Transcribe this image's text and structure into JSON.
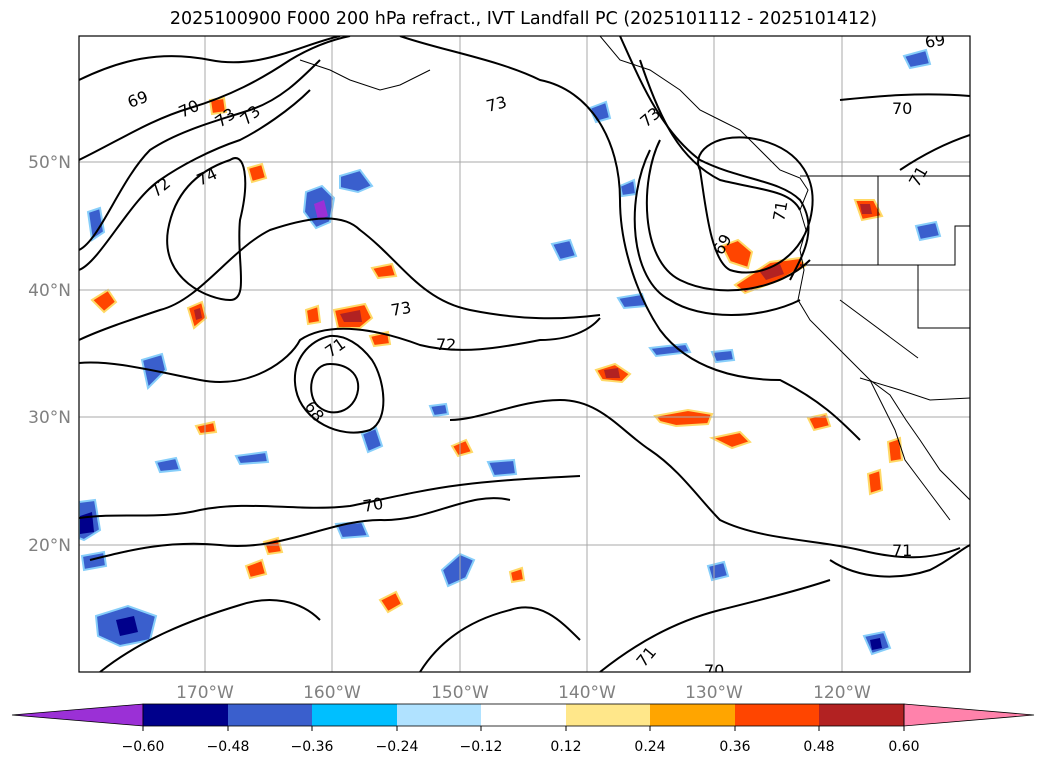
{
  "title": "2025100900 F000 200 hPa refract., IVT Landfall PC (2025101112 - 2025101412)",
  "lat_labels": [
    "50°N",
    "40°N",
    "30°N",
    "20°N"
  ],
  "lon_labels": [
    "170°W",
    "160°W",
    "150°W",
    "140°W",
    "130°W",
    "120°W"
  ],
  "contour_labels": [
    "69",
    "70",
    "73",
    "73",
    "72",
    "74",
    "69",
    "70",
    "73",
    "73",
    "73",
    "72",
    "71",
    "68",
    "69",
    "71",
    "71",
    "70",
    "71",
    "70",
    "71"
  ],
  "colorbar": {
    "colors": [
      "#9b30d6",
      "#00008b",
      "#3a5fcd",
      "#00bfff",
      "#b0e2ff",
      "#ffffff",
      "#ffe78a",
      "#ffa500",
      "#ff4500",
      "#b22222",
      "#ff82ab"
    ],
    "tick_labels": [
      "−0.60",
      "−0.48",
      "−0.36",
      "−0.24",
      "−0.12",
      "0.12",
      "0.24",
      "0.36",
      "0.48",
      "0.60"
    ]
  },
  "colors": {
    "grid": "#a9a9a9",
    "axis_label": "#808080",
    "contour": "#000000"
  }
}
